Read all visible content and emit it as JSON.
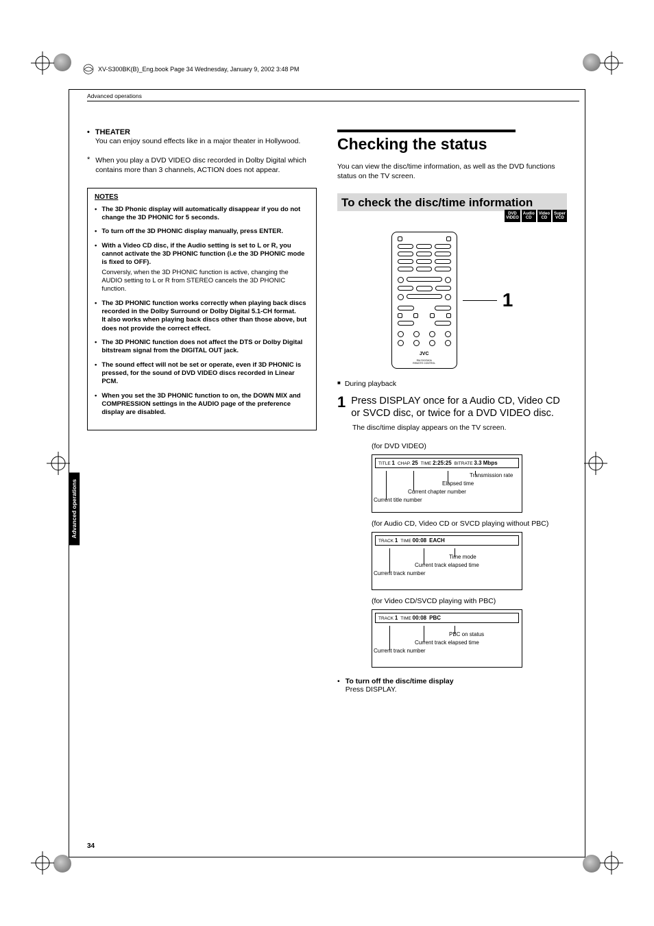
{
  "header": {
    "runhead": "XV-S300BK(B)_Eng.book  Page 34  Wednesday, January 9, 2002  3:48 PM"
  },
  "breadcrumb": "Advanced operations",
  "side_tab": "Advanced\noperations",
  "page_number": "34",
  "left": {
    "theater_label": "THEATER",
    "theater_body": "You can enjoy sound effects like in a major theater in Hollywood.",
    "star_note": "When you play a DVD VIDEO disc  recorded in Dolby Digital which contains more than 3 channels, ACTION does not appear.",
    "notes_heading": "NOTES",
    "notes": [
      {
        "b": "The 3D Phonic display will automatically disappear if you do not change the 3D PHONIC for 5 seconds."
      },
      {
        "b": "To turn off the 3D PHONIC display manually, press ENTER."
      },
      {
        "b": "With a Video CD disc, if the Audio setting is set to L or R, you cannot activate the 3D PHONIC function (i.e the 3D PHONIC mode is fixed to OFF).",
        "s": "Conversly, when the 3D PHONIC function is active, changing the AUDIO setting to L or R from STEREO cancels the 3D PHONIC function."
      },
      {
        "b": "The 3D PHONIC function works correctly when playing back discs recorded in the Dolby Surround or Dolby Digital 5.1-CH format.",
        "b2": "It also works when playing back discs other than those above, but does not provide the correct effect."
      },
      {
        "b": "The 3D PHONIC function does not affect the DTS or Dolby Digital bitstream signal from the DIGITAL OUT jack."
      },
      {
        "b": "The sound effect will not be set or operate, even if 3D PHONIC is pressed, for the sound of DVD VIDEO discs recorded in Linear PCM."
      },
      {
        "b": "When you set the 3D PHONIC function to on, the DOWN MIX and COMPRESSION settings in the AUDIO page of the preference display are disabled."
      }
    ]
  },
  "right": {
    "h1": "Checking the status",
    "lead": "You can view the disc/time information, as well as the DVD functions status on the TV screen.",
    "band": "To check the disc/time information",
    "disc_icons": [
      "DVD\nVIDEO",
      "Audio\nCD",
      "Video\nCD",
      "Super\nVCD"
    ],
    "callout_num": "1",
    "during": "During playback",
    "step_num": "1",
    "step_txt": "Press DISPLAY once for a Audio CD, Video CD or SVCD disc, or twice for a DVD VIDEO disc.",
    "step_sub": "The disc/time display appears on the TV screen.",
    "osd": [
      {
        "for": "(for DVD VIDEO)",
        "bar": [
          [
            "TITLE",
            "1"
          ],
          [
            "CHAP.",
            "25"
          ],
          [
            "TIME",
            "2:25:25"
          ],
          [
            "BITRATE",
            "3.3 Mbps"
          ]
        ],
        "callouts": [
          "Transmission rate",
          "Elapsed time",
          "Current chapter number",
          "Current title number"
        ]
      },
      {
        "for": "(for Audio CD, Video CD or SVCD playing without PBC)",
        "bar": [
          [
            "TRACK",
            "1"
          ],
          [
            "TIME",
            "00:08"
          ],
          [
            "",
            "EACH"
          ]
        ],
        "callouts": [
          "Time mode",
          "Current track elapsed time",
          "Current track number"
        ]
      },
      {
        "for": "(for Video CD/SVCD playing with PBC)",
        "bar": [
          [
            "TRACK",
            "1"
          ],
          [
            "TIME",
            "00:08"
          ],
          [
            "",
            "PBC"
          ]
        ],
        "callouts": [
          "PBC on status",
          "Current track elapsed time",
          "Current track number"
        ]
      }
    ],
    "turnoff_b": "To turn off the disc/time display",
    "turnoff_s": "Press DISPLAY."
  }
}
